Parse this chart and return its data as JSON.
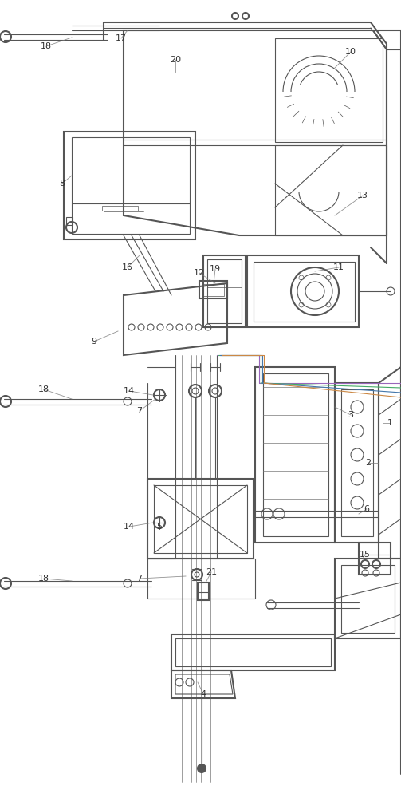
{
  "bg_color": "#ffffff",
  "line_color": "#555555",
  "thin_color": "#777777",
  "label_color": "#333333",
  "figsize": [
    5.03,
    10.0
  ],
  "dpi": 100
}
